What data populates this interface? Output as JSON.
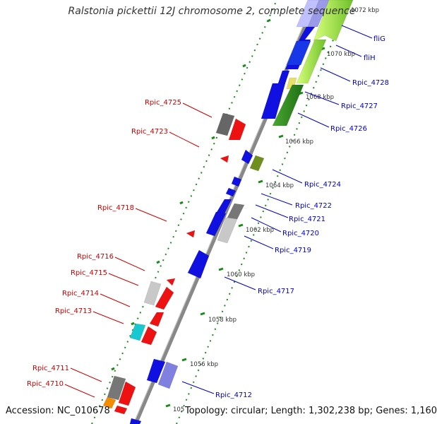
{
  "title": "Ralstonia pickettii 12J chromosome 2, complete sequence",
  "footer": {
    "accession": "Accession: NC_010678",
    "summary": "Topology: circular; Length: 1,302,238 bp; Genes: 1,160"
  },
  "colors": {
    "backbone": "#7a7a7a",
    "forward_label": "#0000cc",
    "reverse_label": "#cc0000",
    "tick": "#1a8a1a",
    "blue": "#1010e0",
    "red": "#ee1111",
    "gray": "#777777",
    "lightgray": "#c8c8c8",
    "green": "#2f8f1f",
    "lime": "#9be24a",
    "olive": "#6e8f1e",
    "cyan": "#18c8d0",
    "orange": "#f28c00",
    "violet": "#8080e0"
  },
  "scale_labels": [
    "1072 kbp",
    "1070 kbp",
    "1068 kbp",
    "1066 kbp",
    "1064 kbp",
    "1062 kbp",
    "1060 kbp",
    "1058 kbp",
    "1056 kbp",
    "105"
  ],
  "forward_genes": [
    {
      "name": "fliG"
    },
    {
      "name": "fliH"
    },
    {
      "name": "Rpic_4728"
    },
    {
      "name": "Rpic_4727"
    },
    {
      "name": "Rpic_4726"
    },
    {
      "name": "Rpic_4724"
    },
    {
      "name": "Rpic_4722"
    },
    {
      "name": "Rpic_4721"
    },
    {
      "name": "Rpic_4720"
    },
    {
      "name": "Rpic_4719"
    },
    {
      "name": "Rpic_4717"
    },
    {
      "name": "Rpic_4712"
    }
  ],
  "reverse_genes": [
    {
      "name": "Rpic_4725"
    },
    {
      "name": "Rpic_4723"
    },
    {
      "name": "Rpic_4718"
    },
    {
      "name": "Rpic_4716"
    },
    {
      "name": "Rpic_4715"
    },
    {
      "name": "Rpic_4714"
    },
    {
      "name": "Rpic_4713"
    },
    {
      "name": "Rpic_4711"
    },
    {
      "name": "Rpic_4710"
    }
  ]
}
